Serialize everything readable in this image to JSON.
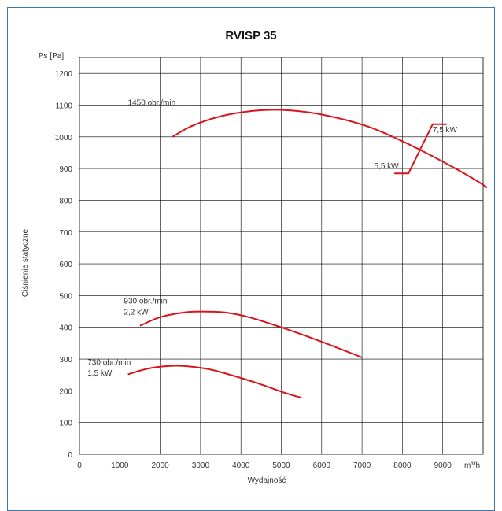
{
  "chart_data": {
    "type": "line",
    "title": "RVISP 35",
    "ylabel": "Ciśnienie statyczne",
    "y_unit_label": "Ps [Pa]",
    "xlabel": "Wydajność",
    "x_unit_label": "m³/h",
    "xlim": [
      0,
      10000
    ],
    "ylim": [
      0,
      1250
    ],
    "x_ticks": [
      0,
      1000,
      2000,
      3000,
      4000,
      5000,
      6000,
      7000,
      8000,
      9000
    ],
    "y_ticks": [
      0,
      100,
      200,
      300,
      400,
      500,
      600,
      700,
      800,
      900,
      1000,
      1100,
      1200
    ],
    "grid": true,
    "colors": {
      "curve": "#d9141c",
      "grid": "#000000",
      "frame": "#3a78b5"
    },
    "series": [
      {
        "label_lines": [
          "1450 obr./min"
        ],
        "points": [
          [
            2300,
            1000
          ],
          [
            2800,
            1035
          ],
          [
            3500,
            1065
          ],
          [
            4300,
            1082
          ],
          [
            5000,
            1085
          ],
          [
            5800,
            1075
          ],
          [
            6600,
            1053
          ],
          [
            7200,
            1030
          ],
          [
            7800,
            998
          ],
          [
            8500,
            955
          ],
          [
            9200,
            908
          ],
          [
            9800,
            865
          ],
          [
            10100,
            840
          ]
        ]
      },
      {
        "label_lines": [
          "930 obr./min",
          "2,2 kW"
        ],
        "points": [
          [
            1500,
            405
          ],
          [
            2000,
            432
          ],
          [
            2600,
            447
          ],
          [
            3000,
            450
          ],
          [
            3600,
            447
          ],
          [
            4200,
            432
          ],
          [
            5000,
            400
          ],
          [
            5800,
            364
          ],
          [
            6500,
            330
          ],
          [
            7000,
            305
          ]
        ]
      },
      {
        "label_lines": [
          "730 obr./min",
          "1,5 kW"
        ],
        "points": [
          [
            1200,
            252
          ],
          [
            1700,
            270
          ],
          [
            2200,
            278
          ],
          [
            2600,
            278
          ],
          [
            3200,
            268
          ],
          [
            3800,
            248
          ],
          [
            4500,
            220
          ],
          [
            5100,
            193
          ],
          [
            5500,
            178
          ]
        ]
      }
    ],
    "power_lines": [
      {
        "label": "5,5 kW",
        "points": [
          [
            7800,
            885
          ],
          [
            8150,
            885
          ],
          [
            8750,
            1040
          ],
          [
            9100,
            1040
          ]
        ]
      },
      {
        "label": "7,5 kW"
      }
    ]
  }
}
